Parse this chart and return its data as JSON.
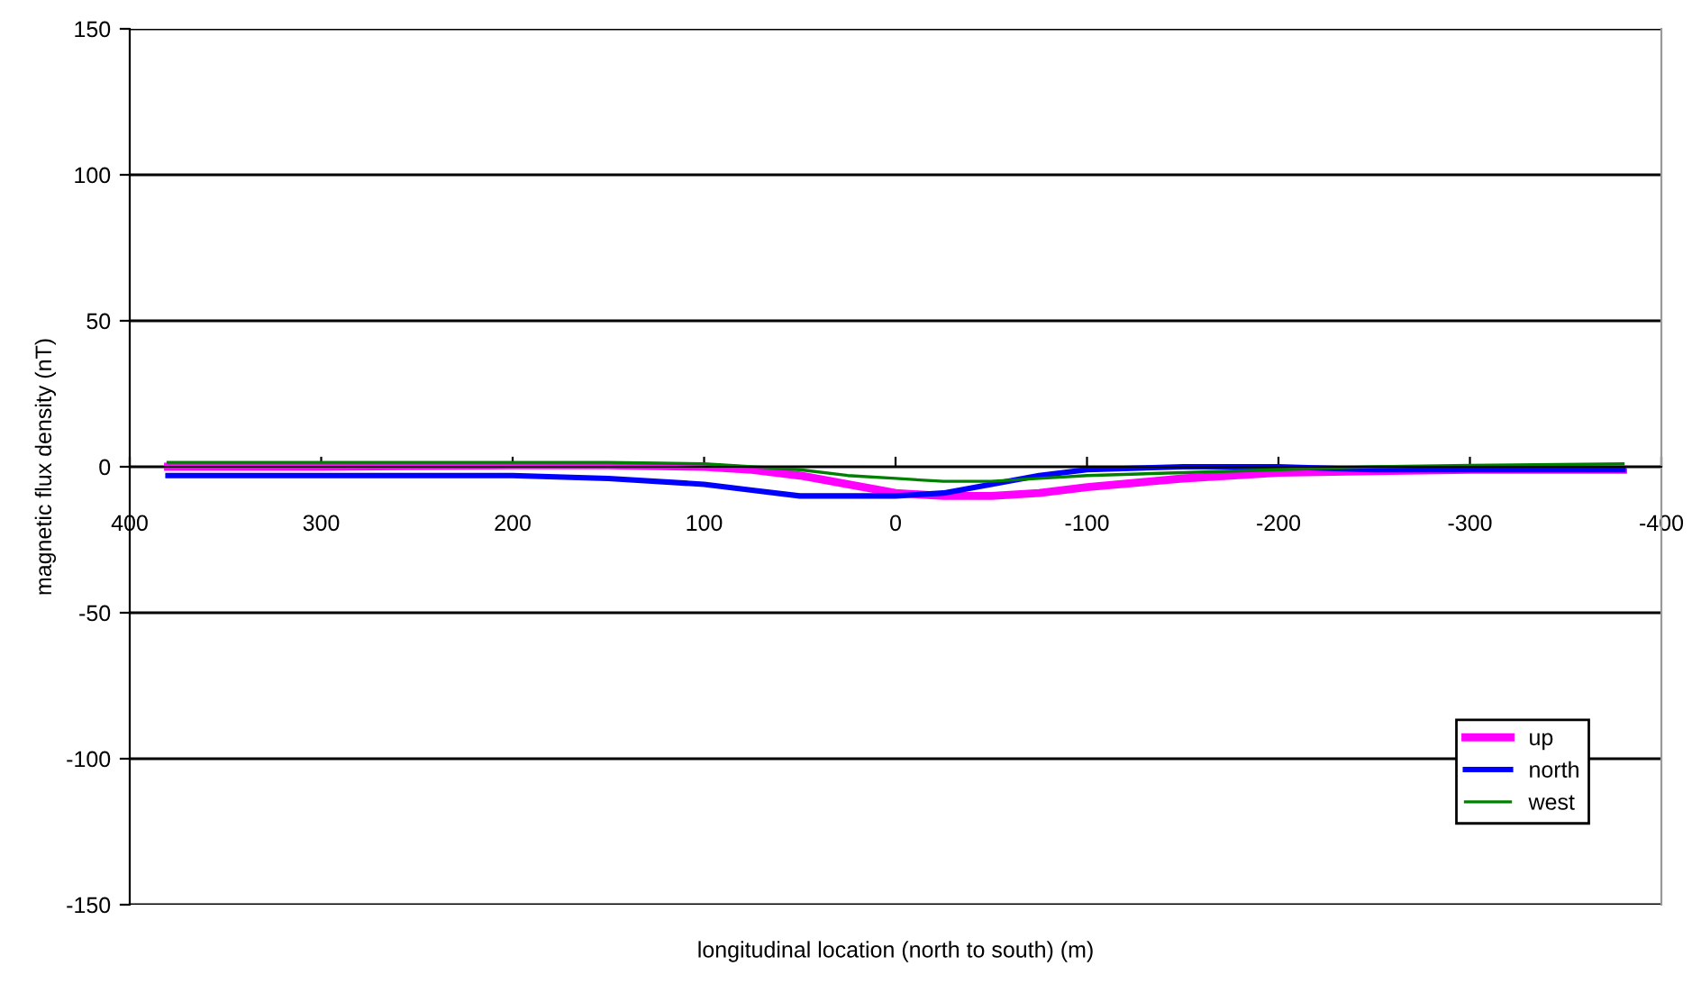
{
  "chart_data": {
    "type": "line",
    "xlabel": "longitudinal location (north to south) (m)",
    "ylabel": "magnetic flux density (nT)",
    "x": [
      380,
      300,
      200,
      150,
      100,
      75,
      50,
      25,
      0,
      -25,
      -50,
      -75,
      -100,
      -150,
      -200,
      -250,
      -300,
      -380
    ],
    "series": [
      {
        "name": "up",
        "color": "#ff00ff",
        "values": [
          0,
          0,
          0.5,
          0.5,
          0,
          -1,
          -3,
          -6,
          -9,
          -10,
          -10,
          -9,
          -7,
          -4,
          -2,
          -1.5,
          -1,
          -1
        ]
      },
      {
        "name": "north",
        "color": "#0000ff",
        "values": [
          -3,
          -3,
          -3,
          -4,
          -6,
          -8,
          -10,
          -10,
          -10,
          -9,
          -6,
          -3,
          -1,
          0,
          0,
          -1,
          -1,
          -1
        ]
      },
      {
        "name": "west",
        "color": "#008000",
        "values": [
          1.5,
          1.5,
          1.5,
          1.5,
          1,
          0,
          -1,
          -3,
          -4,
          -5,
          -5,
          -4,
          -3,
          -2,
          -1,
          0,
          0.5,
          1
        ]
      }
    ],
    "xlim": [
      400,
      -400
    ],
    "xticks": [
      400,
      300,
      200,
      100,
      0,
      -100,
      -200,
      -300,
      -400
    ],
    "ylim": [
      -150,
      150
    ],
    "yticks": [
      -150,
      -100,
      -50,
      0,
      50,
      100,
      150
    ],
    "grid": "y",
    "legend": "bottom right",
    "marker": "none",
    "line_style": "solid"
  }
}
